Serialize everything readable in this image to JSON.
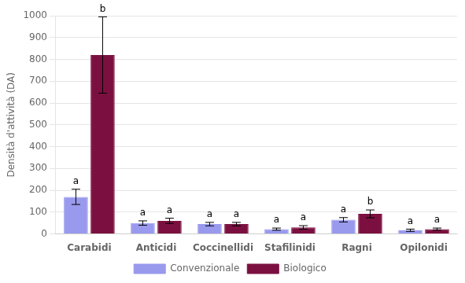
{
  "chart_data": {
    "type": "bar",
    "ylabel": "Densità d'attività (DA)",
    "categories": [
      "Carabidi",
      "Anticidi",
      "Coccinellidi",
      "Stafilinidi",
      "Ragni",
      "Opilonidi"
    ],
    "series": [
      {
        "name": "Convenzionale",
        "color": "#9999ee",
        "values": [
          170,
          50,
          45,
          22,
          65,
          17
        ],
        "errors": [
          35,
          10,
          8,
          5,
          10,
          5
        ],
        "annotations": [
          "a",
          "a",
          "a",
          "a",
          "a",
          "a"
        ]
      },
      {
        "name": "Biologico",
        "color": "#7b1040",
        "values": [
          820,
          60,
          45,
          30,
          92,
          22
        ],
        "errors": [
          175,
          12,
          8,
          8,
          18,
          5
        ],
        "annotations": [
          "b",
          "a",
          "a",
          "a",
          "b",
          "a"
        ]
      }
    ],
    "ylim": [
      0,
      1000
    ],
    "yticks": [
      0,
      100,
      200,
      300,
      400,
      500,
      600,
      700,
      800,
      900,
      1000
    ],
    "grid": true,
    "legend": "bottom"
  }
}
